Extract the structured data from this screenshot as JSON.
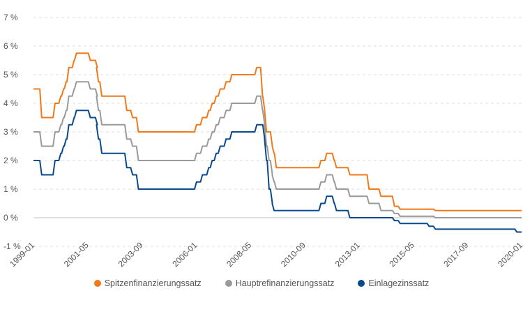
{
  "chart_data": {
    "type": "line",
    "title": "",
    "xlabel": "",
    "ylabel": "",
    "ylim": [
      -1,
      7
    ],
    "xlim": [
      "1999-01-01",
      "2020-01-01"
    ],
    "y_ticks": [
      -1,
      0,
      1,
      2,
      3,
      4,
      5,
      6,
      7
    ],
    "y_tick_labels": [
      "-1 %",
      "0 %",
      "1 %",
      "2 %",
      "3 %",
      "4 %",
      "5 %",
      "6 %",
      "7 %"
    ],
    "x_ticks": [
      "1999-01",
      "2001-05",
      "2003-09",
      "2006-01",
      "2008-05",
      "2010-09",
      "2013-01",
      "2015-05",
      "2017-09",
      "2020-01"
    ],
    "grid": true,
    "legend_position": "bottom",
    "change_dates": [
      "1999-01-01",
      "1999-04-09",
      "1999-11-05",
      "2000-02-04",
      "2000-03-17",
      "2000-04-28",
      "2000-06-09",
      "2000-09-01",
      "2000-10-06",
      "2001-05-11",
      "2001-08-31",
      "2001-09-18",
      "2001-11-09",
      "2002-12-06",
      "2003-03-07",
      "2003-06-06",
      "2005-12-06",
      "2006-03-08",
      "2006-06-15",
      "2006-08-09",
      "2006-10-11",
      "2006-12-13",
      "2007-03-14",
      "2007-06-13",
      "2008-07-09",
      "2008-10-09",
      "2008-11-12",
      "2008-12-10",
      "2009-01-21",
      "2009-03-11",
      "2009-04-08",
      "2009-05-13",
      "2011-04-13",
      "2011-07-13",
      "2011-11-09",
      "2011-12-14",
      "2012-07-11",
      "2013-05-08",
      "2013-11-13",
      "2014-06-11",
      "2014-09-10",
      "2015-12-09",
      "2016-03-16",
      "2019-09-18",
      "2020-01-01"
    ],
    "series": [
      {
        "name": "Spitzenfinanzierungssatz",
        "color": "#f07a1a",
        "values": [
          4.5,
          3.5,
          4.0,
          4.25,
          4.5,
          4.75,
          5.25,
          5.5,
          5.75,
          5.5,
          5.25,
          4.75,
          4.25,
          3.75,
          3.5,
          3.0,
          3.25,
          3.5,
          3.75,
          4.0,
          4.25,
          4.5,
          4.75,
          5.0,
          5.25,
          4.25,
          3.75,
          3.0,
          3.0,
          2.5,
          2.25,
          1.75,
          2.0,
          2.25,
          2.0,
          1.75,
          1.5,
          1.0,
          0.75,
          0.4,
          0.3,
          0.3,
          0.25,
          0.25,
          0.25
        ]
      },
      {
        "name": "Hauptrefinanzierungssatz",
        "color": "#9a9a9a",
        "values": [
          3.0,
          2.5,
          3.0,
          3.25,
          3.5,
          3.75,
          4.25,
          4.5,
          4.75,
          4.5,
          4.25,
          3.75,
          3.25,
          2.75,
          2.5,
          2.0,
          2.25,
          2.5,
          2.75,
          3.0,
          3.25,
          3.5,
          3.75,
          4.0,
          4.25,
          3.75,
          3.25,
          2.5,
          2.0,
          1.5,
          1.25,
          1.0,
          1.25,
          1.5,
          1.25,
          1.0,
          0.75,
          0.5,
          0.25,
          0.15,
          0.05,
          0.05,
          0.0,
          0.0,
          0.0
        ]
      },
      {
        "name": "Einlagezinssatz",
        "color": "#0a4a8c",
        "values": [
          2.0,
          1.5,
          2.0,
          2.25,
          2.5,
          2.75,
          3.25,
          3.5,
          3.75,
          3.5,
          3.25,
          2.75,
          2.25,
          1.75,
          1.5,
          1.0,
          1.25,
          1.5,
          1.75,
          2.0,
          2.25,
          2.5,
          2.75,
          3.0,
          3.25,
          3.25,
          2.75,
          2.0,
          1.0,
          0.5,
          0.25,
          0.25,
          0.5,
          0.75,
          0.5,
          0.25,
          0.0,
          0.0,
          0.0,
          -0.1,
          -0.2,
          -0.3,
          -0.4,
          -0.5,
          -0.5
        ]
      }
    ]
  }
}
